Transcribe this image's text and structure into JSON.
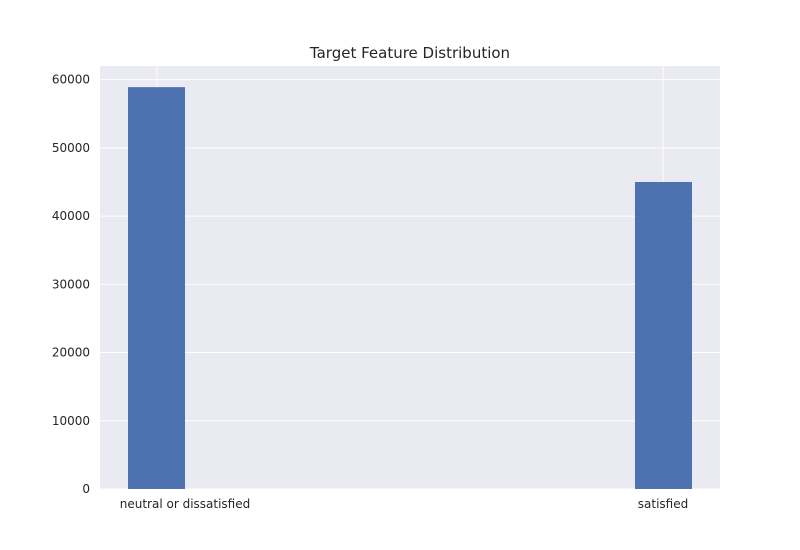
{
  "chart_data": {
    "type": "bar",
    "title": "Target Feature Distribution",
    "xlabel": "",
    "ylabel": "",
    "categories": [
      "neutral or dissatisfied",
      "satisfied"
    ],
    "values": [
      58900,
      45000
    ],
    "ylim": [
      0,
      62000
    ],
    "yticks": [
      0,
      10000,
      20000,
      30000,
      40000,
      50000,
      60000
    ],
    "grid": true,
    "bar_color": "#4c72b0",
    "background_color": "#eaeaf2",
    "grid_color": "#ffffff"
  }
}
